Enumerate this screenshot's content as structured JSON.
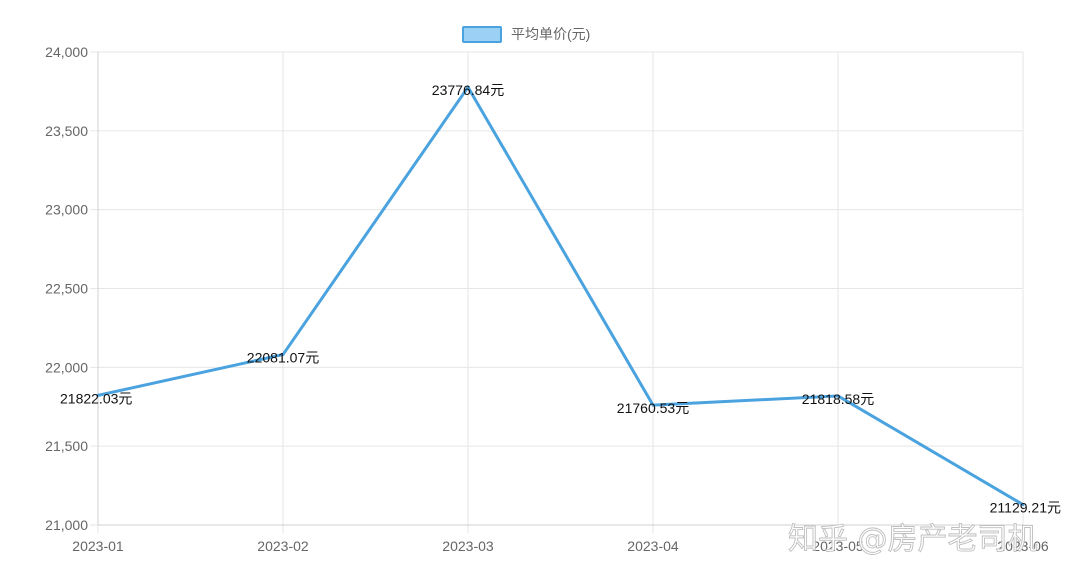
{
  "chart_data": {
    "type": "line",
    "categories": [
      "2023-01",
      "2023-02",
      "2023-03",
      "2023-04",
      "2023-05",
      "2023-06"
    ],
    "series": [
      {
        "name": "平均单价(元)",
        "values": [
          21822.03,
          22081.07,
          23776.84,
          21760.53,
          21818.58,
          21129.21
        ],
        "labels": [
          "21822.03元",
          "22081.07元",
          "23776.84元",
          "21760.53元",
          "21818.58元",
          "21129.21元"
        ]
      }
    ],
    "ylim": [
      21000,
      24000
    ],
    "yticks": [
      21000,
      21500,
      22000,
      22500,
      23000,
      23500,
      24000
    ],
    "ytick_labels": [
      "21,000",
      "21,500",
      "22,000",
      "22,500",
      "23,000",
      "23,500",
      "24,000"
    ],
    "grid": true,
    "legend": "top-center"
  },
  "colors": {
    "line": "#4aa3df",
    "legend_fill": "#9dd0f5",
    "grid": "#e6e6e6"
  },
  "watermark": "知乎 @房产老司机"
}
